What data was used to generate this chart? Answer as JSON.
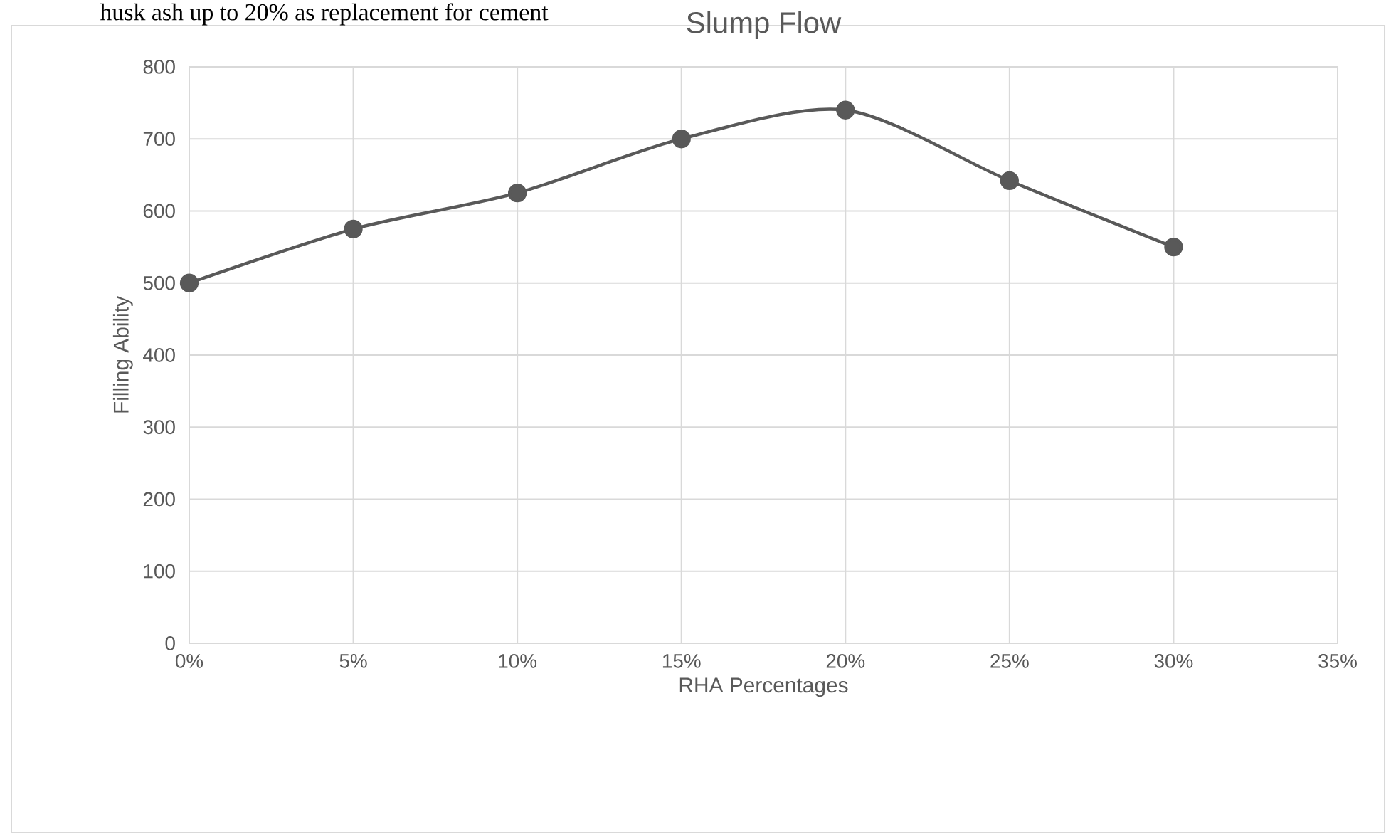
{
  "chart_data": {
    "type": "line",
    "title": "Slump Flow",
    "xlabel": "RHA Percentages",
    "ylabel": "Filling Ability",
    "annotations": [
      "husk ash up to 20% as replacement for cement"
    ],
    "x": [
      0,
      5,
      10,
      15,
      20,
      25,
      30
    ],
    "series": [
      {
        "color": "#595959",
        "values": [
          500,
          575,
          625,
          700,
          740,
          642,
          550
        ]
      }
    ],
    "xlim": [
      0,
      35
    ],
    "xticks": [
      {
        "value": 0,
        "label": "0%"
      },
      {
        "value": 5,
        "label": "5%"
      },
      {
        "value": 10,
        "label": "10%"
      },
      {
        "value": 15,
        "label": "15%"
      },
      {
        "value": 20,
        "label": "20%"
      },
      {
        "value": 25,
        "label": "25%"
      },
      {
        "value": 30,
        "label": "30%"
      },
      {
        "value": 35,
        "label": "35%"
      }
    ],
    "ylim": [
      0,
      800
    ],
    "yticks": [
      0,
      100,
      200,
      300,
      400,
      500,
      600,
      700,
      800
    ],
    "grid": true,
    "marker": "circle",
    "line_style": "solid"
  }
}
